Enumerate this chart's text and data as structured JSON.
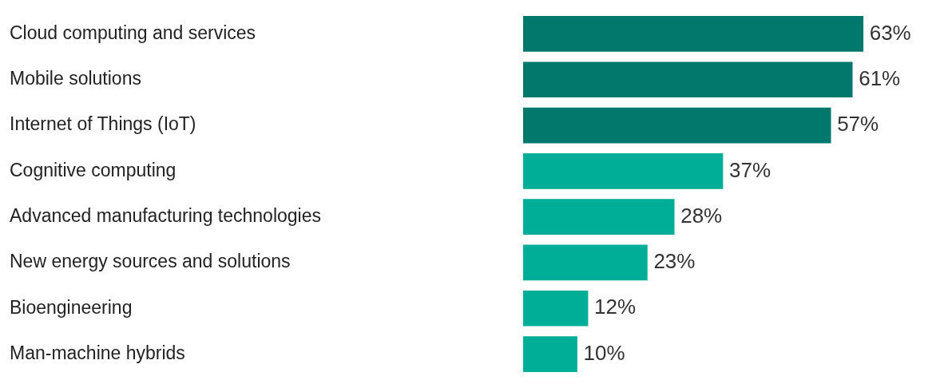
{
  "chart_data": {
    "type": "bar",
    "orientation": "horizontal",
    "categories": [
      "Cloud computing and services",
      "Mobile solutions",
      "Internet of Things (IoT)",
      "Cognitive computing",
      "Advanced manufacturing technologies",
      "New energy sources and solutions",
      "Bioengineering",
      "Man-machine hybrids"
    ],
    "values": [
      63,
      61,
      57,
      37,
      28,
      23,
      12,
      10
    ],
    "colors": [
      "#00786b",
      "#00786b",
      "#00786b",
      "#00ad96",
      "#00ad96",
      "#00ad96",
      "#00ad96",
      "#00ad96"
    ],
    "value_labels": [
      "63%",
      "61%",
      "57%",
      "37%",
      "28%",
      "23%",
      "12%",
      "10%"
    ],
    "tick_labels": "y",
    "legend": false
  }
}
